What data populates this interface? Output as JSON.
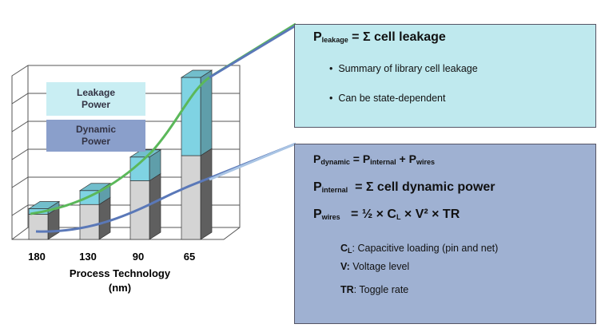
{
  "chart_data": {
    "type": "bar",
    "stacked": true,
    "categories": [
      "180",
      "130",
      "90",
      "65"
    ],
    "xlabel": [
      "Process Technology",
      "(nm)"
    ],
    "ylim": [
      0,
      6
    ],
    "series": [
      {
        "name": "Dynamic Power",
        "color": "#d4d4d4",
        "legend_color": "#8a9fcb",
        "values": [
          0.9,
          1.25,
          2.1,
          3.0
        ]
      },
      {
        "name": "Leakage Power",
        "color": "#7fd3e3",
        "legend_color": "#c9eef3",
        "values": [
          0.2,
          0.5,
          0.85,
          2.8
        ]
      }
    ]
  },
  "leakage_box": {
    "title": [
      {
        "t": "P",
        "b": true
      },
      {
        "t": "leakage",
        "sub": true,
        "b": true
      },
      {
        "t": " = Σ cell leakage",
        "b": true
      }
    ],
    "bullets": [
      "Summary of library cell leakage",
      "Can be state-dependent"
    ]
  },
  "dynamic_box": {
    "formulas": [
      [
        {
          "t": "P",
          "b": true
        },
        {
          "t": "dynamic",
          "sub": true,
          "b": true
        },
        {
          "t": " = P",
          "b": true
        },
        {
          "t": "internal",
          "sub": true,
          "b": true
        },
        {
          "t": " + P",
          "b": true
        },
        {
          "t": "wires",
          "sub": true,
          "b": true
        }
      ],
      [
        {
          "t": "P",
          "b": true
        },
        {
          "t": "internal",
          "sub": true,
          "b": true
        },
        {
          "t": "  = Σ cell dynamic power",
          "b": true
        }
      ],
      [
        {
          "t": "P",
          "b": true
        },
        {
          "t": "wires",
          "sub": true,
          "b": true
        },
        {
          "t": "   = ½ × C",
          "b": true
        },
        {
          "t": "L",
          "sub": true,
          "b": true
        },
        {
          "t": " × V² × TR",
          "b": true
        }
      ]
    ],
    "notes": [
      [
        {
          "t": "C",
          "b": true
        },
        {
          "t": "L",
          "sub": true,
          "b": true
        },
        {
          "t": ": Capacitive loading (pin and net)"
        }
      ],
      [
        {
          "t": "V:",
          "b": true
        },
        {
          "t": " Voltage level"
        }
      ],
      [
        {
          "t": "TR",
          "b": true
        },
        {
          "t": ": Toggle rate"
        }
      ]
    ]
  }
}
